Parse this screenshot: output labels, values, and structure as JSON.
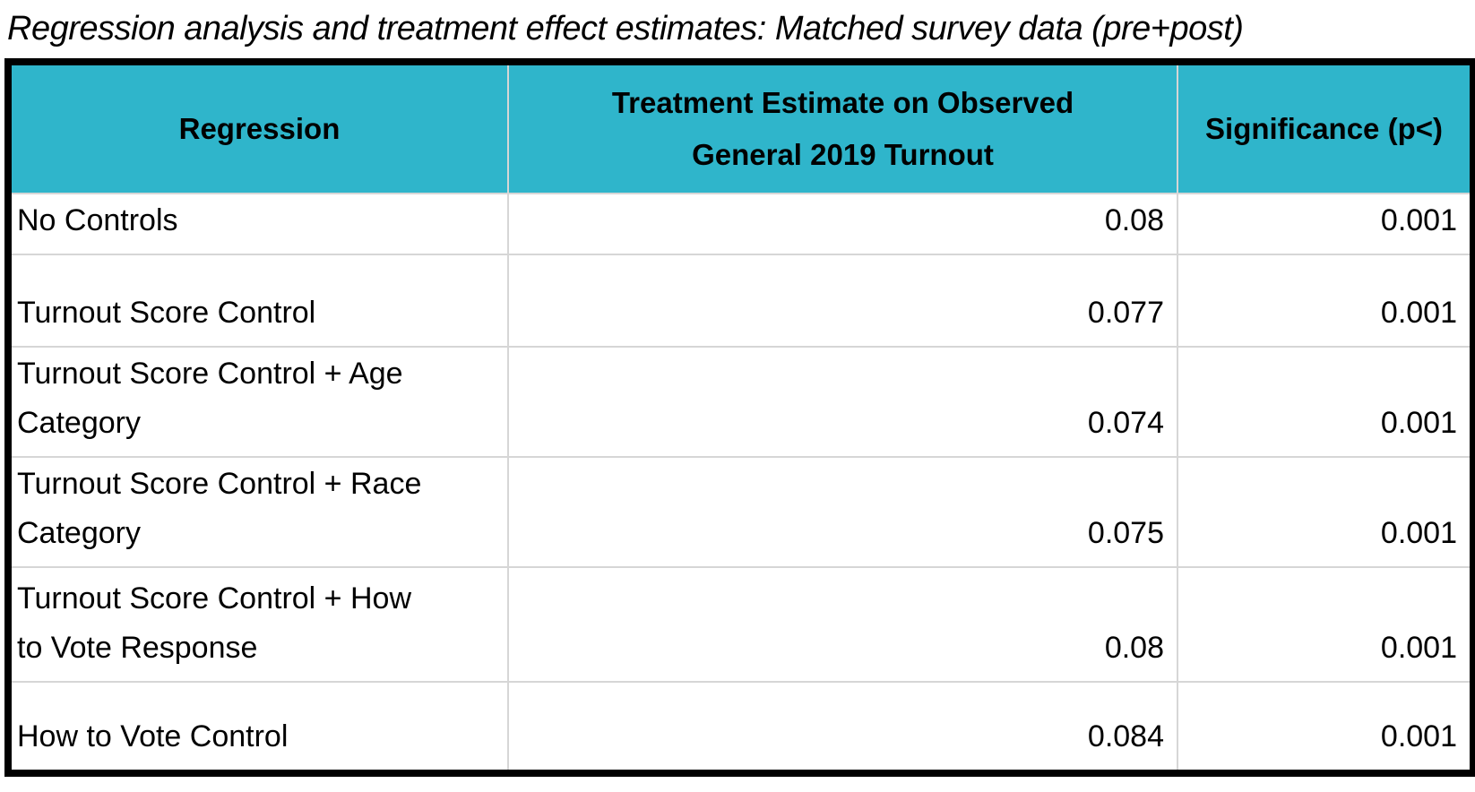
{
  "chart_data": {
    "type": "table",
    "title": "Regression analysis and treatment effect estimates: Matched survey data (pre+post)",
    "columns": [
      "Regression",
      "Treatment Estimate on Observed\nGeneral 2019 Turnout",
      "Significance (p<)"
    ],
    "rows": [
      {
        "regression": "No Controls",
        "estimate": "0.08",
        "significance": "0.001"
      },
      {
        "regression": "Turnout Score Control",
        "estimate": "0.077",
        "significance": "0.001"
      },
      {
        "regression": "Turnout Score Control + Age\nCategory",
        "estimate": "0.074",
        "significance": "0.001"
      },
      {
        "regression": "Turnout Score Control + Race\nCategory",
        "estimate": "0.075",
        "significance": "0.001"
      },
      {
        "regression": "Turnout Score Control + How\nto Vote Response",
        "estimate": "0.08",
        "significance": "0.001"
      },
      {
        "regression": "How to Vote Control",
        "estimate": "0.084",
        "significance": "0.001"
      }
    ],
    "layout": {
      "legend": "none",
      "grid": "on"
    }
  },
  "colors": {
    "header_bg": "#2fb5cb",
    "header_text": "#000000",
    "body_text": "#000000",
    "grid_line": "#d6d6d6",
    "outer_border": "#000000"
  }
}
